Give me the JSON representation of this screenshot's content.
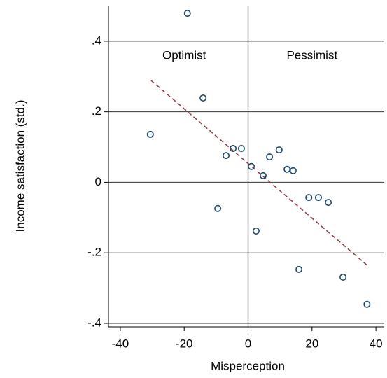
{
  "chart_data": {
    "type": "scatter",
    "xlabel": "Misperception",
    "ylabel": "Income satisfaction (std.)",
    "xlim": [
      -43.7,
      42.6
    ],
    "ylim": [
      -0.41,
      0.501
    ],
    "xticks": [
      -40,
      -20,
      0,
      20,
      40
    ],
    "yticks": [
      {
        "value": 0.4,
        "label": ".4"
      },
      {
        "value": 0.2,
        "label": ".2"
      },
      {
        "value": 0,
        "label": "0"
      },
      {
        "value": -0.2,
        "label": "-.2"
      },
      {
        "value": -0.4,
        "label": "-.4"
      }
    ],
    "grid": true,
    "xline": 0,
    "series": [
      {
        "color": "#1a476f",
        "x": [
          -19.0,
          -14.1,
          -30.6,
          -6.9,
          -4.7,
          -2.1,
          1.0,
          -9.5,
          4.7,
          6.7,
          9.7,
          12.2,
          14.1,
          2.5,
          19.0,
          22.0,
          25.1,
          15.9,
          29.7,
          37.2
        ],
        "values": [
          0.479,
          0.239,
          0.136,
          0.076,
          0.096,
          0.096,
          0.045,
          -0.074,
          0.019,
          0.072,
          0.092,
          0.037,
          0.033,
          -0.138,
          -0.043,
          -0.043,
          -0.057,
          -0.247,
          -0.269,
          -0.346
        ]
      }
    ],
    "fit": {
      "color": "#90353b",
      "x": [
        -30.4,
        37.2
      ],
      "values": [
        0.289,
        -0.235
      ]
    },
    "annotations": [
      {
        "text": "Optimist",
        "x": -20,
        "y": 0.358
      },
      {
        "text": "Pessimist",
        "x": 20,
        "y": 0.358
      }
    ]
  }
}
